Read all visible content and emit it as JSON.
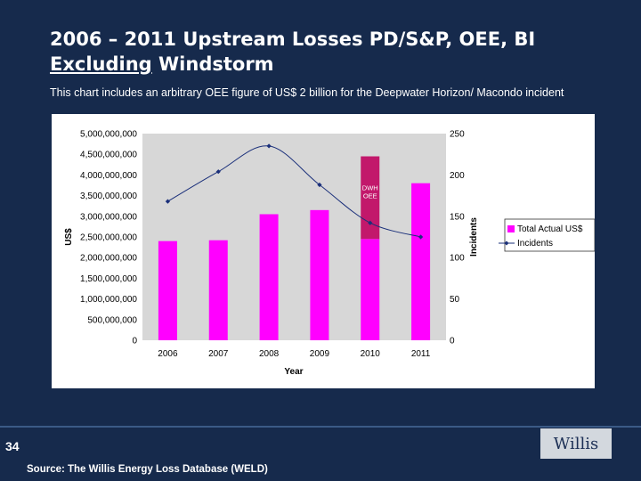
{
  "slide": {
    "title_line1": "2006 – 2011 Upstream Losses PD/S&P, OEE, BI",
    "title_line2_underlined": "Excluding",
    "title_line2_rest": " Windstorm",
    "subtitle": "This chart includes an arbitrary OEE figure of US$ 2 billion for the Deepwater Horizon/ Macondo incident",
    "page_number": "34",
    "source": "Source: The Willis Energy Loss Database (WELD)",
    "logo_text": "Willis"
  },
  "colors": {
    "background": "#162a4c",
    "bar": "#ff00ff",
    "dwh_bar": "#c2186b",
    "line": "#1a2f7a",
    "plot_bg": "#d7d7d7"
  },
  "chart_data": {
    "type": "bar",
    "categories": [
      "2006",
      "2007",
      "2008",
      "2009",
      "2010",
      "2011"
    ],
    "series": [
      {
        "name": "Total Actual US$",
        "type": "bar",
        "axis": "left",
        "values": [
          2400000000,
          2420000000,
          3050000000,
          3150000000,
          2450000000,
          3800000000
        ]
      },
      {
        "name": "Incidents",
        "type": "line",
        "axis": "right",
        "values": [
          168,
          204,
          235,
          188,
          142,
          125
        ]
      }
    ],
    "stacked_segment": {
      "category": "2010",
      "label": "DWH OEE",
      "value": 2000000000
    },
    "xlabel": "Year",
    "ylabel": "US$",
    "y2label": "Incidents",
    "ylim": [
      0,
      5000000000
    ],
    "y2lim": [
      0,
      250
    ],
    "yticks": [
      "0",
      "500,000,000",
      "1,000,000,000",
      "1,500,000,000",
      "2,000,000,000",
      "2,500,000,000",
      "3,000,000,000",
      "3,500,000,000",
      "4,000,000,000",
      "4,500,000,000",
      "5,000,000,000"
    ],
    "y2ticks": [
      "0",
      "50",
      "100",
      "150",
      "200",
      "250"
    ],
    "legend": "right",
    "grid": false
  }
}
